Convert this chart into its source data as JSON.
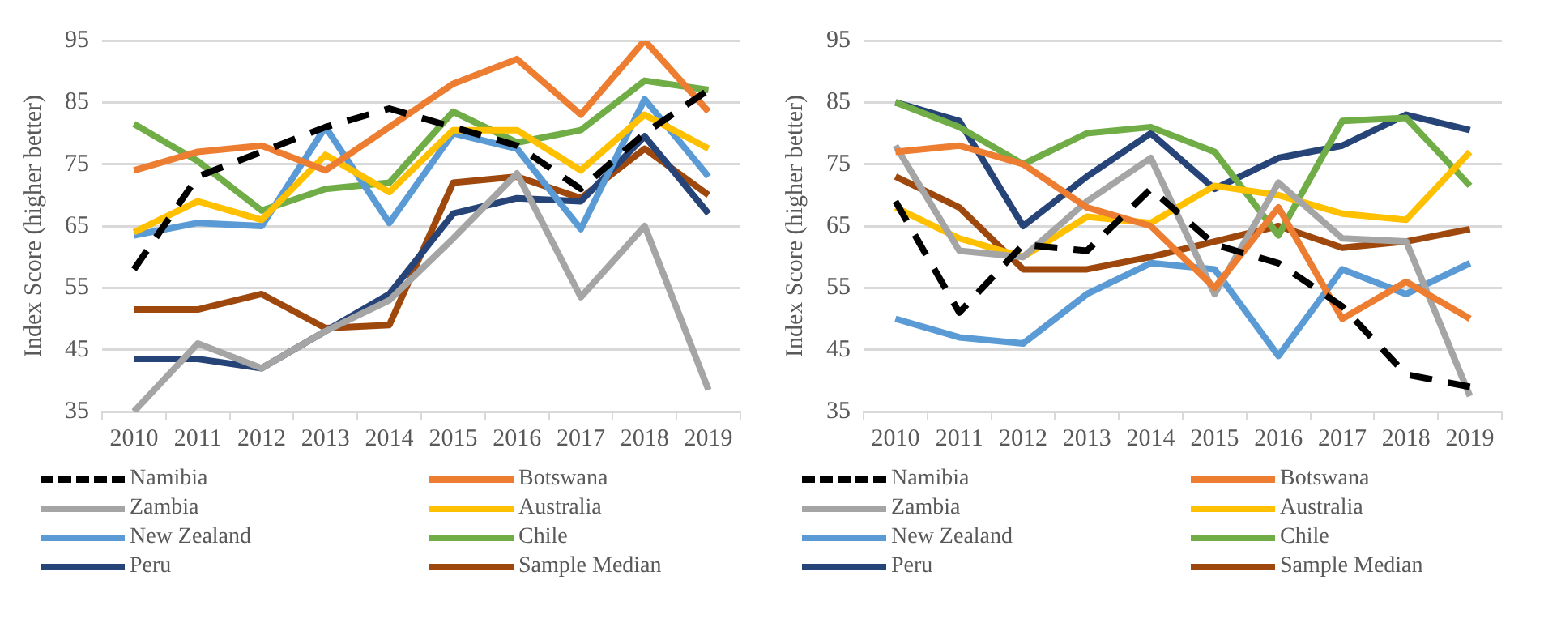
{
  "chart_data": [
    {
      "type": "line",
      "ylabel": "Index Score (higher better)",
      "categories": [
        "2010",
        "2011",
        "2012",
        "2013",
        "2014",
        "2015",
        "2016",
        "2017",
        "2018",
        "2019"
      ],
      "ylim": [
        35,
        95
      ],
      "yticks": [
        35,
        45,
        55,
        65,
        75,
        85,
        95
      ],
      "grid": "y",
      "legend": "bottom",
      "marker": "none",
      "series": [
        {
          "name": "Namibia",
          "color": "#000000",
          "line_style": "dashed",
          "values": [
            58,
            73,
            77,
            81,
            84,
            81,
            78,
            71,
            80,
            87
          ]
        },
        {
          "name": "Botswana",
          "color": "#ed7d31",
          "values": [
            74,
            77,
            78,
            74,
            81,
            88,
            92,
            83,
            95,
            83.5
          ]
        },
        {
          "name": "Zambia",
          "color": "#a5a5a5",
          "values": [
            35,
            46,
            42,
            48,
            53,
            63,
            73.5,
            53.5,
            65,
            38.5
          ]
        },
        {
          "name": "Australia",
          "color": "#ffc000",
          "values": [
            64,
            69,
            66,
            76.5,
            70.5,
            80.5,
            80.5,
            74,
            83,
            77.5
          ]
        },
        {
          "name": "New Zealand",
          "color": "#5b9bd5",
          "values": [
            63.5,
            65.5,
            65,
            81,
            65.5,
            80,
            77.5,
            64.5,
            85.5,
            73
          ]
        },
        {
          "name": "Chile",
          "color": "#70ad47",
          "values": [
            81.5,
            75.5,
            67.5,
            71,
            72,
            83.5,
            78.5,
            80.5,
            88.5,
            87
          ]
        },
        {
          "name": "Peru",
          "color": "#264478",
          "values": [
            43.5,
            43.5,
            42,
            48,
            54,
            67,
            69.5,
            69,
            79.5,
            67
          ]
        },
        {
          "name": "Sample Median",
          "color": "#9e480e",
          "values": [
            51.5,
            51.5,
            54,
            48.5,
            49,
            72,
            73,
            69.5,
            77.5,
            70
          ]
        }
      ]
    },
    {
      "type": "line",
      "ylabel": "Index Score (higher better)",
      "categories": [
        "2010",
        "2011",
        "2012",
        "2013",
        "2014",
        "2015",
        "2016",
        "2017",
        "2018",
        "2019"
      ],
      "ylim": [
        35,
        95
      ],
      "yticks": [
        35,
        45,
        55,
        65,
        75,
        85,
        95
      ],
      "grid": "y",
      "legend": "bottom",
      "marker": "none",
      "series": [
        {
          "name": "Namibia",
          "color": "#000000",
          "line_style": "dashed",
          "values": [
            69,
            51,
            62,
            61,
            71,
            62,
            59,
            52,
            41,
            39
          ]
        },
        {
          "name": "Botswana",
          "color": "#ed7d31",
          "values": [
            77,
            78,
            75,
            68,
            65,
            55,
            68,
            50,
            56,
            50
          ]
        },
        {
          "name": "Zambia",
          "color": "#a5a5a5",
          "values": [
            78,
            61,
            60,
            69,
            76,
            54,
            72,
            63,
            62.5,
            37.5
          ]
        },
        {
          "name": "Australia",
          "color": "#ffc000",
          "values": [
            68,
            63,
            60,
            66.5,
            65.5,
            71.5,
            70,
            67,
            66,
            77
          ]
        },
        {
          "name": "New Zealand",
          "color": "#5b9bd5",
          "values": [
            50,
            47,
            46,
            54,
            59,
            58,
            44,
            58,
            54,
            59
          ]
        },
        {
          "name": "Chile",
          "color": "#70ad47",
          "values": [
            85,
            81,
            75,
            80,
            81,
            77,
            63.5,
            82,
            82.5,
            71.5
          ]
        },
        {
          "name": "Peru",
          "color": "#264478",
          "values": [
            85,
            82,
            65,
            73,
            80,
            71,
            76,
            78,
            83,
            80.5
          ]
        },
        {
          "name": "Sample Median",
          "color": "#9e480e",
          "values": [
            73,
            68,
            58,
            58,
            60,
            62.5,
            65,
            61.5,
            62.5,
            64.5
          ]
        }
      ]
    }
  ]
}
